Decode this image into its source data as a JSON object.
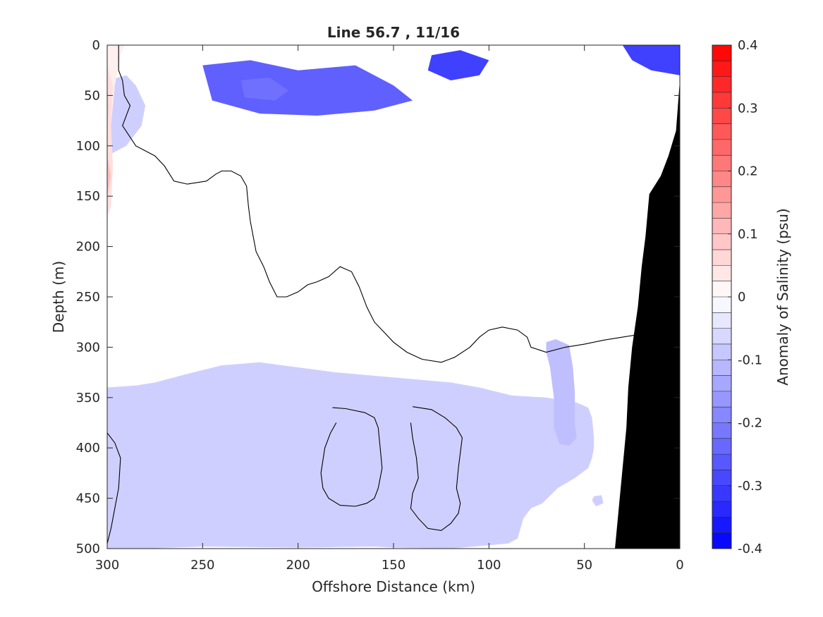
{
  "chart_data": {
    "type": "heatmap",
    "title": "Line 56.7 , 11/16",
    "xlabel": "Offshore Distance (km)",
    "ylabel": "Depth (m)",
    "xlim": [
      300,
      0
    ],
    "ylim": [
      0,
      500
    ],
    "x_reversed": true,
    "y_reversed": true,
    "x_ticks": [
      300,
      250,
      200,
      150,
      100,
      50,
      0
    ],
    "y_ticks": [
      0,
      50,
      100,
      150,
      200,
      250,
      300,
      350,
      400,
      450,
      500
    ],
    "colorbar": {
      "label": "Anomaly of Salinity (psu)",
      "range": [
        -0.4,
        0.4
      ],
      "step": 0.025,
      "ticks": [
        0.4,
        0.3,
        0.2,
        0.1,
        0,
        -0.1,
        -0.2,
        -0.3,
        -0.4
      ],
      "high_color": "#ff0000",
      "mid_color": "#ffffff",
      "low_color": "#0000ff"
    },
    "colors": {
      "land": "#000000",
      "contour": "#000000"
    },
    "regions": [
      {
        "level": -0.25,
        "points": [
          [
            250,
            20
          ],
          [
            225,
            15
          ],
          [
            200,
            25
          ],
          [
            170,
            20
          ],
          [
            150,
            40
          ],
          [
            140,
            55
          ],
          [
            160,
            65
          ],
          [
            190,
            70
          ],
          [
            220,
            68
          ],
          [
            245,
            55
          ]
        ]
      },
      {
        "level": -0.225,
        "points": [
          [
            230,
            35
          ],
          [
            215,
            32
          ],
          [
            205,
            45
          ],
          [
            212,
            55
          ],
          [
            228,
            52
          ]
        ]
      },
      {
        "level": -0.3,
        "points": [
          [
            130,
            10
          ],
          [
            115,
            5
          ],
          [
            100,
            15
          ],
          [
            105,
            30
          ],
          [
            120,
            35
          ],
          [
            132,
            25
          ]
        ]
      },
      {
        "level": -0.3,
        "points": [
          [
            30,
            0
          ],
          [
            0,
            0
          ],
          [
            0,
            30
          ],
          [
            15,
            25
          ],
          [
            25,
            15
          ]
        ]
      },
      {
        "level": -0.075,
        "points": [
          [
            300,
            500
          ],
          [
            280,
            500
          ],
          [
            250,
            498
          ],
          [
            200,
            499
          ],
          [
            160,
            498
          ],
          [
            150,
            499
          ],
          [
            120,
            500
          ],
          [
            90,
            495
          ],
          [
            85,
            490
          ],
          [
            82,
            470
          ],
          [
            78,
            460
          ],
          [
            72,
            455
          ],
          [
            64,
            440
          ],
          [
            55,
            430
          ],
          [
            48,
            420
          ],
          [
            46,
            410
          ],
          [
            45,
            400
          ],
          [
            45,
            390
          ],
          [
            46,
            370
          ],
          [
            48,
            360
          ],
          [
            54,
            355
          ],
          [
            70,
            350
          ],
          [
            88,
            348
          ],
          [
            105,
            340
          ],
          [
            120,
            335
          ],
          [
            150,
            330
          ],
          [
            180,
            325
          ],
          [
            200,
            320
          ],
          [
            220,
            315
          ],
          [
            240,
            318
          ],
          [
            255,
            325
          ],
          [
            265,
            330
          ],
          [
            275,
            335
          ],
          [
            285,
            338
          ],
          [
            300,
            340
          ]
        ]
      },
      {
        "level": -0.1,
        "points": [
          [
            70,
            295
          ],
          [
            65,
            292
          ],
          [
            58,
            298
          ],
          [
            56,
            320
          ],
          [
            55,
            345
          ],
          [
            55,
            375
          ],
          [
            54,
            390
          ],
          [
            58,
            398
          ],
          [
            63,
            396
          ],
          [
            66,
            380
          ],
          [
            66,
            350
          ],
          [
            68,
            320
          ],
          [
            70,
            305
          ]
        ]
      },
      {
        "level": -0.075,
        "points": [
          [
            45,
            448
          ],
          [
            41,
            447
          ],
          [
            40,
            455
          ],
          [
            44,
            458
          ],
          [
            46,
            452
          ]
        ]
      },
      {
        "level": -0.075,
        "points": [
          [
            300,
            35
          ],
          [
            290,
            30
          ],
          [
            285,
            40
          ],
          [
            280,
            60
          ],
          [
            282,
            80
          ],
          [
            290,
            100
          ],
          [
            300,
            110
          ]
        ]
      },
      {
        "level": 0.025,
        "points": [
          [
            300,
            0
          ],
          [
            291,
            0
          ],
          [
            293,
            10
          ],
          [
            296,
            40
          ],
          [
            298,
            80
          ],
          [
            298,
            120
          ],
          [
            299,
            160
          ],
          [
            300,
            180
          ]
        ]
      },
      {
        "level": 0.05,
        "points": [
          [
            300,
            20
          ],
          [
            297,
            40
          ],
          [
            298,
            80
          ],
          [
            297,
            120
          ],
          [
            298,
            160
          ],
          [
            300,
            170
          ]
        ]
      },
      {
        "level": 0.075,
        "points": [
          [
            300,
            40
          ],
          [
            299,
            60
          ],
          [
            300,
            80
          ]
        ]
      },
      {
        "level": 0.1,
        "points": [
          [
            300,
            110
          ],
          [
            298,
            130
          ],
          [
            300,
            150
          ]
        ]
      }
    ],
    "contours_zero": [
      [
        [
          294,
          0
        ],
        [
          294,
          25
        ],
        [
          292,
          35
        ],
        [
          291,
          50
        ],
        [
          288,
          60
        ],
        [
          292,
          80
        ],
        [
          285,
          100
        ],
        [
          275,
          110
        ],
        [
          270,
          120
        ],
        [
          265,
          135
        ],
        [
          258,
          138
        ],
        [
          248,
          135
        ],
        [
          243,
          128
        ],
        [
          240,
          125
        ],
        [
          235,
          125
        ],
        [
          230,
          130
        ],
        [
          227,
          140
        ],
        [
          226,
          160
        ],
        [
          225,
          175
        ],
        [
          223,
          195
        ],
        [
          222,
          205
        ],
        [
          218,
          220
        ],
        [
          215,
          235
        ],
        [
          211,
          250
        ],
        [
          206,
          250
        ],
        [
          200,
          245
        ],
        [
          195,
          238
        ],
        [
          190,
          235
        ],
        [
          184,
          230
        ],
        [
          178,
          220
        ],
        [
          172,
          225
        ],
        [
          168,
          240
        ],
        [
          164,
          260
        ],
        [
          160,
          275
        ],
        [
          155,
          285
        ],
        [
          150,
          295
        ],
        [
          143,
          305
        ],
        [
          135,
          312
        ],
        [
          125,
          315
        ],
        [
          118,
          310
        ],
        [
          110,
          300
        ],
        [
          105,
          290
        ],
        [
          100,
          283
        ],
        [
          93,
          280
        ],
        [
          85,
          283
        ],
        [
          80,
          290
        ],
        [
          78,
          300
        ],
        [
          70,
          305
        ],
        [
          60,
          300
        ],
        [
          50,
          297
        ],
        [
          40,
          293
        ],
        [
          30,
          290
        ],
        [
          20,
          287
        ],
        [
          10,
          290
        ],
        [
          0,
          300
        ]
      ],
      [
        [
          300,
          385
        ],
        [
          296,
          395
        ],
        [
          293,
          410
        ],
        [
          294,
          440
        ],
        [
          296,
          460
        ],
        [
          298,
          480
        ],
        [
          300,
          495
        ]
      ],
      [
        [
          182,
          360
        ],
        [
          175,
          361
        ],
        [
          165,
          365
        ],
        [
          160,
          370
        ],
        [
          158,
          380
        ],
        [
          157,
          400
        ],
        [
          156,
          420
        ],
        [
          158,
          440
        ],
        [
          160,
          450
        ],
        [
          164,
          455
        ],
        [
          170,
          458
        ],
        [
          178,
          457
        ],
        [
          184,
          450
        ],
        [
          187,
          440
        ],
        [
          188,
          425
        ],
        [
          186,
          400
        ],
        [
          183,
          385
        ],
        [
          180,
          375
        ]
      ],
      [
        [
          140,
          359
        ],
        [
          130,
          362
        ],
        [
          123,
          370
        ],
        [
          117,
          380
        ],
        [
          114,
          390
        ],
        [
          115,
          405
        ],
        [
          116,
          420
        ],
        [
          117,
          440
        ],
        [
          115,
          455
        ],
        [
          116,
          465
        ],
        [
          120,
          475
        ],
        [
          125,
          482
        ],
        [
          132,
          480
        ],
        [
          137,
          470
        ],
        [
          141,
          460
        ],
        [
          140,
          445
        ],
        [
          137,
          430
        ],
        [
          138,
          410
        ],
        [
          140,
          390
        ],
        [
          141,
          375
        ]
      ]
    ],
    "land": [
      [
        34,
        500
      ],
      [
        32,
        460
      ],
      [
        30,
        420
      ],
      [
        28,
        380
      ],
      [
        27,
        340
      ],
      [
        25,
        300
      ],
      [
        22,
        260
      ],
      [
        20,
        220
      ],
      [
        18,
        190
      ],
      [
        16,
        148
      ],
      [
        10,
        130
      ],
      [
        6,
        110
      ],
      [
        2,
        85
      ],
      [
        0,
        35
      ],
      [
        0,
        500
      ]
    ]
  }
}
